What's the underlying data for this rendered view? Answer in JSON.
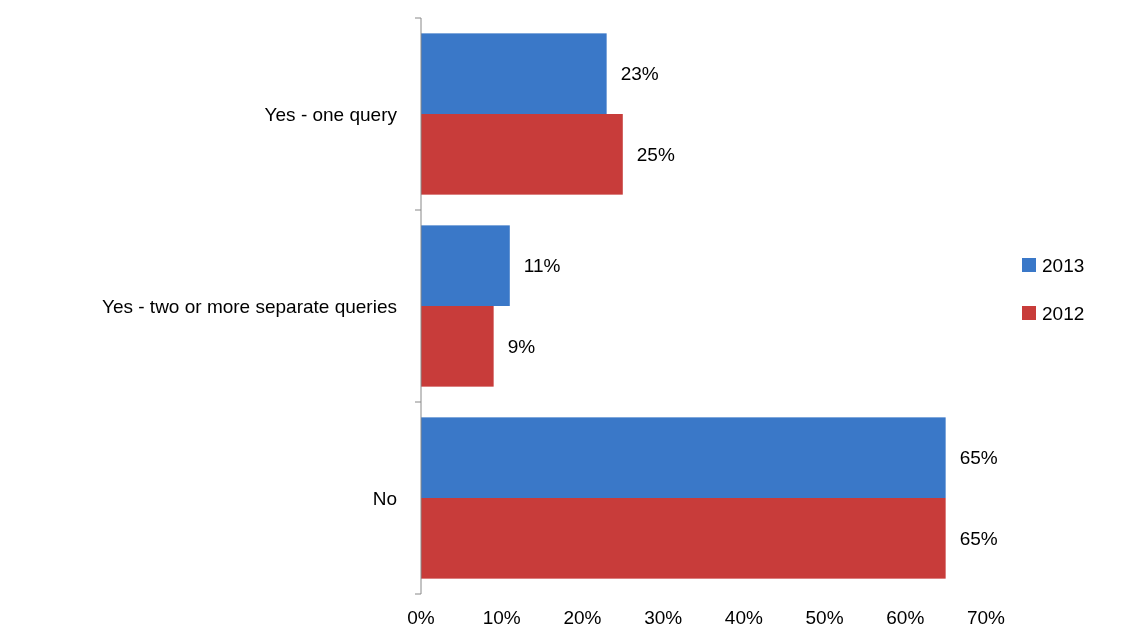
{
  "chart_data": {
    "type": "bar",
    "orientation": "horizontal",
    "categories": [
      "Yes - one query",
      "Yes - two or more separate queries",
      "No"
    ],
    "series": [
      {
        "name": "2013",
        "color": "#3a78c8",
        "values": [
          23,
          11,
          65
        ],
        "value_labels": [
          "23%",
          "11%",
          "65%"
        ]
      },
      {
        "name": "2012",
        "color": "#c83c3a",
        "values": [
          25,
          9,
          65
        ],
        "value_labels": [
          "25%",
          "9%",
          "65%"
        ]
      }
    ],
    "xlim": [
      0,
      70
    ],
    "xticks": [
      {
        "value": 0,
        "label": "0%"
      },
      {
        "value": 10,
        "label": "10%"
      },
      {
        "value": 20,
        "label": "20%"
      },
      {
        "value": 30,
        "label": "30%"
      },
      {
        "value": 40,
        "label": "40%"
      },
      {
        "value": 50,
        "label": "50%"
      },
      {
        "value": 60,
        "label": "60%"
      },
      {
        "value": 70,
        "label": "70%"
      }
    ],
    "legend": "right",
    "grid": false
  }
}
